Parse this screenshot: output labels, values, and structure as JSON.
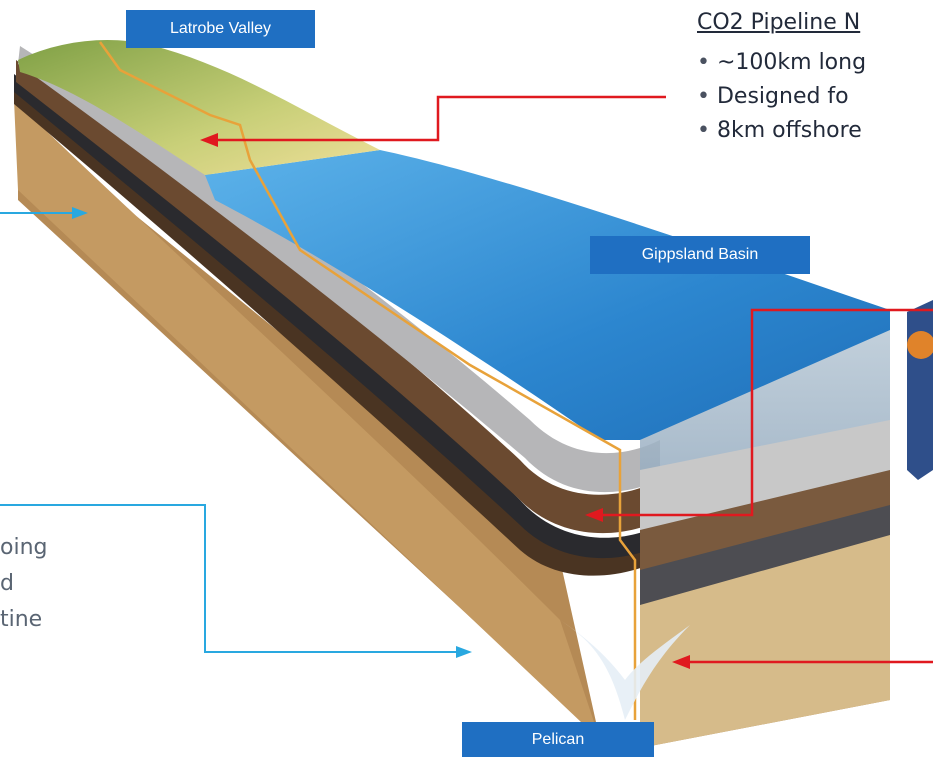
{
  "labels": {
    "latrobe": "Latrobe Valley",
    "gippsland": "Gippsland Basin",
    "pelican": "Pelican"
  },
  "pipeline_info": {
    "title": "CO2 Pipeline N",
    "items": [
      "~100km long",
      "Designed fo",
      "8km offshore"
    ]
  },
  "left_text": [
    "oing",
    "d",
    "tine"
  ],
  "colors": {
    "label_bg": "#1f6fc2",
    "callout_red": "#e0191f",
    "callout_blue": "#29a8e0",
    "ocean": "#2f8fd6",
    "land": "#b9c46a",
    "pipeline": "#e8a23a"
  },
  "icons": [
    "1km-below-seafloor-badge"
  ]
}
